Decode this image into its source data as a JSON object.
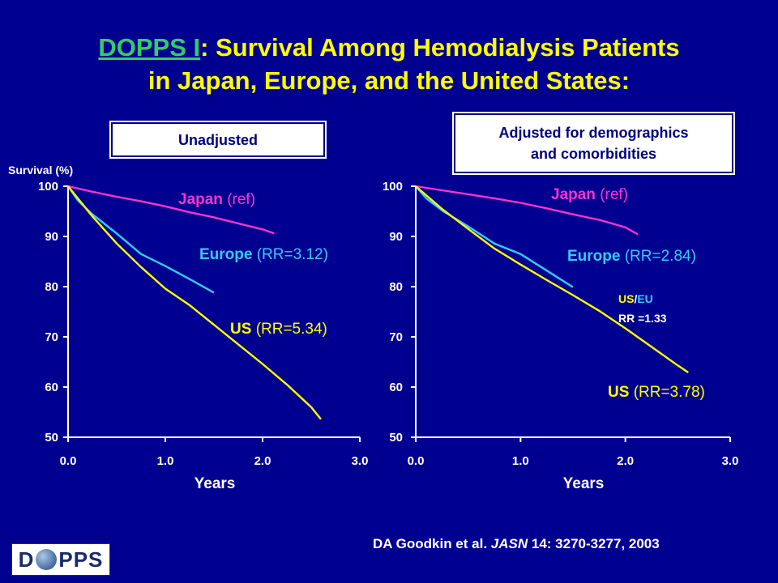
{
  "title": {
    "link": "DOPPS I",
    "rest_line1": ": Survival Among Hemodialysis Patients",
    "line2": "in Japan, Europe, and the United States:"
  },
  "panel_labels": {
    "left": "Unadjusted",
    "right_line1": "Adjusted for demographics",
    "right_line2": "and comorbidities"
  },
  "colors": {
    "background": "#000090",
    "japan": "#ff33cc",
    "europe": "#33ccff",
    "us": "#ffff00",
    "title": "#ffff00"
  },
  "citation": {
    "prefix": "DA Goodkin et al. ",
    "journal": "JASN",
    "suffix": " 14: 3270-3277, 2003"
  },
  "logo": {
    "left": "D",
    "right": "PPS"
  },
  "chart_data": [
    {
      "type": "line",
      "ylabel": "Survival (%)",
      "xlabel": "Years",
      "xlim": [
        0,
        3
      ],
      "ylim": [
        50,
        100
      ],
      "xticks": [
        "0.0",
        "1.0",
        "2.0",
        "3.0"
      ],
      "yticks": [
        "50",
        "60",
        "70",
        "80",
        "90",
        "100"
      ],
      "series": [
        {
          "name": "Japan",
          "annotation": "(ref)",
          "color": "#ff33cc",
          "x": [
            0,
            0.25,
            0.5,
            0.75,
            1.0,
            1.25,
            1.5,
            1.75,
            2.0,
            2.12
          ],
          "y": [
            100,
            98.9,
            97.9,
            97.0,
            96.0,
            94.8,
            93.8,
            92.6,
            91.4,
            90.6
          ]
        },
        {
          "name": "Europe",
          "annotation": "(RR=3.12)",
          "color": "#33ccff",
          "x": [
            0,
            0.1,
            0.25,
            0.5,
            0.75,
            1.0,
            1.25,
            1.5
          ],
          "y": [
            100,
            97.2,
            94.4,
            90.6,
            86.5,
            84.1,
            81.5,
            78.8
          ]
        },
        {
          "name": "US",
          "annotation": "(RR=5.34)",
          "color": "#ffff00",
          "x": [
            0,
            0.25,
            0.5,
            0.75,
            1.0,
            1.25,
            1.5,
            1.75,
            2.0,
            2.25,
            2.5,
            2.6
          ],
          "y": [
            100,
            94.0,
            88.6,
            83.9,
            79.6,
            76.3,
            72.4,
            68.5,
            64.6,
            60.5,
            56.0,
            53.6
          ]
        }
      ]
    },
    {
      "type": "line",
      "xlabel": "Years",
      "xlim": [
        0,
        3
      ],
      "ylim": [
        50,
        100
      ],
      "xticks": [
        "0.0",
        "1.0",
        "2.0",
        "3.0"
      ],
      "yticks": [
        "50",
        "60",
        "70",
        "80",
        "90",
        "100"
      ],
      "annotation": {
        "line1_a": "US",
        "line1_sep": "/",
        "line1_b": "EU",
        "line2": "RR =1.33"
      },
      "series": [
        {
          "name": "Japan",
          "annotation": "(ref)",
          "color": "#ff33cc",
          "x": [
            0,
            0.25,
            0.5,
            0.75,
            1.0,
            1.25,
            1.5,
            1.75,
            2.0,
            2.12
          ],
          "y": [
            100,
            99.2,
            98.4,
            97.6,
            96.7,
            95.6,
            94.4,
            93.3,
            91.8,
            90.4
          ]
        },
        {
          "name": "Europe",
          "annotation": "(RR=2.84)",
          "color": "#33ccff",
          "x": [
            0,
            0.1,
            0.25,
            0.5,
            0.75,
            1.0,
            1.25,
            1.5
          ],
          "y": [
            100,
            97.6,
            95.2,
            92.0,
            88.6,
            86.5,
            83.2,
            79.9
          ]
        },
        {
          "name": "US",
          "annotation": "(RR=3.78)",
          "color": "#ffff00",
          "x": [
            0,
            0.25,
            0.5,
            0.75,
            1.0,
            1.25,
            1.5,
            1.75,
            2.0,
            2.25,
            2.5,
            2.6
          ],
          "y": [
            100,
            95.5,
            91.5,
            87.6,
            84.4,
            81.3,
            78.3,
            75.2,
            71.7,
            68.0,
            64.3,
            62.9
          ]
        }
      ]
    }
  ]
}
